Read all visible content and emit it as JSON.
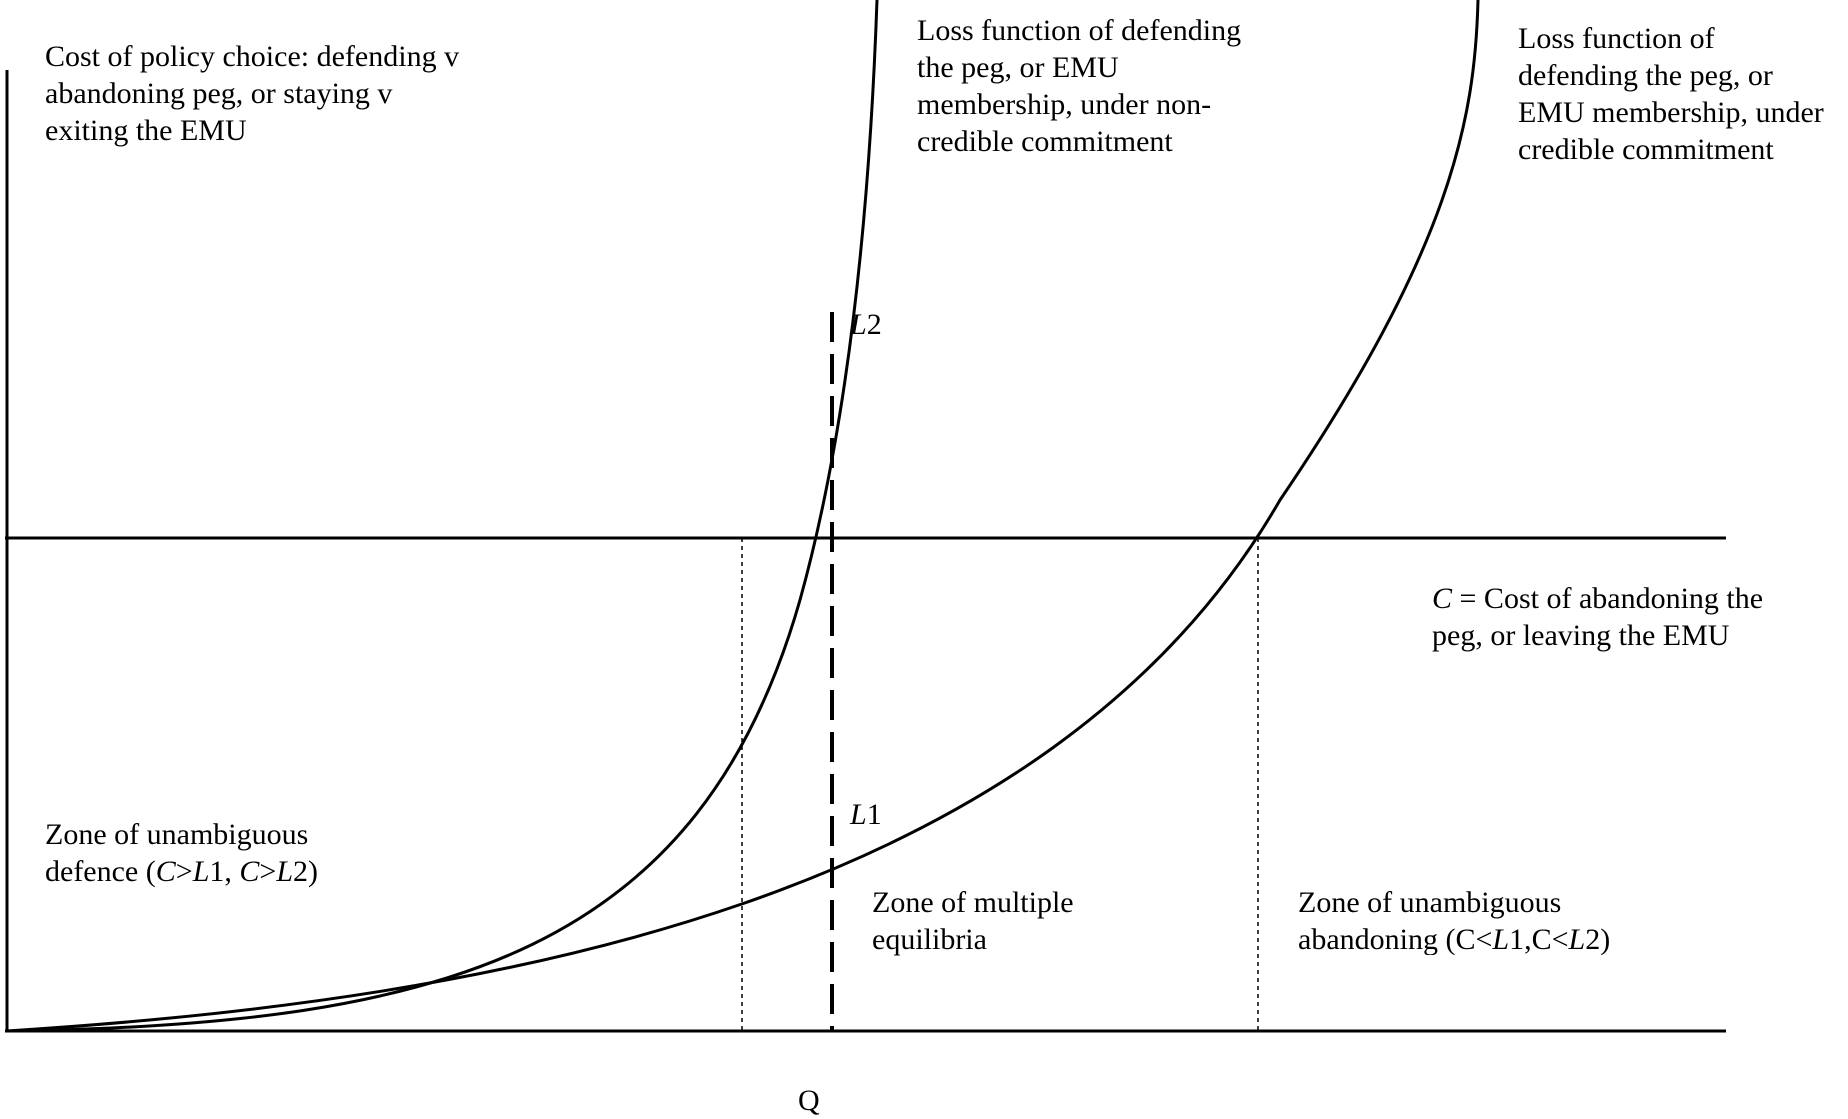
{
  "y_axis_label": [
    "Cost of policy choice: defending v",
    "abandoning peg, or staying v",
    "exiting the EMU"
  ],
  "curve_noncredible_label": [
    "Loss function of defending",
    "the peg, or EMU",
    "membership, under non-",
    "credible commitment"
  ],
  "curve_credible_label": [
    "Loss function of",
    "defending the peg, or",
    "EMU membership, under",
    "credible commitment"
  ],
  "cost_line_label": {
    "symbol": "C",
    "rest": " = Cost of abandoning the",
    "line2": "peg, or leaving the EMU"
  },
  "point_L2": {
    "italic": "L",
    "num": "2"
  },
  "point_L1": {
    "italic": "L",
    "num": "1"
  },
  "zone_defence": {
    "line1": "Zone of unambiguous",
    "pre": "defence (",
    "c1": "C",
    "gt1": ">",
    "l1": "L",
    "n1": "1, ",
    "c2": "C",
    "gt2": ">",
    "l2": "L",
    "n2": "2)"
  },
  "zone_multiple": [
    "Zone of multiple",
    "equilibria"
  ],
  "zone_abandon": {
    "line1": "Zone of unambiguous",
    "pre": "abandoning (C<",
    "l1": "L",
    "mid": "1,C<",
    "l2": "L",
    "post": "2)"
  },
  "x_axis_label": "Q"
}
